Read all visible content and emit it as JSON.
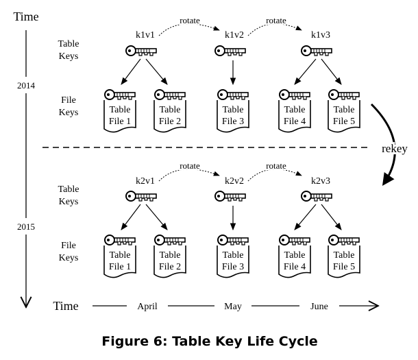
{
  "axis": {
    "time_vertical": "Time",
    "time_horizontal": "Time",
    "years": [
      "2014",
      "2015"
    ],
    "months": [
      "April",
      "May",
      "June"
    ]
  },
  "row_labels": {
    "table_keys": [
      "Table",
      "Keys"
    ],
    "file_keys": [
      "File",
      "Keys"
    ]
  },
  "periods": [
    {
      "key_labels": [
        "k1v1",
        "k1v2",
        "k1v3"
      ],
      "rotate_labels": [
        "rotate",
        "rotate"
      ]
    },
    {
      "key_labels": [
        "k2v1",
        "k2v2",
        "k2v3"
      ],
      "rotate_labels": [
        "rotate",
        "rotate"
      ]
    }
  ],
  "files": [
    {
      "line1": "Table",
      "line2": "File 1"
    },
    {
      "line1": "Table",
      "line2": "File 2"
    },
    {
      "line1": "Table",
      "line2": "File 3"
    },
    {
      "line1": "Table",
      "line2": "File 4"
    },
    {
      "line1": "Table",
      "line2": "File 5"
    }
  ],
  "rekey_label": "rekey",
  "caption": "Figure 6: Table Key Life Cycle"
}
